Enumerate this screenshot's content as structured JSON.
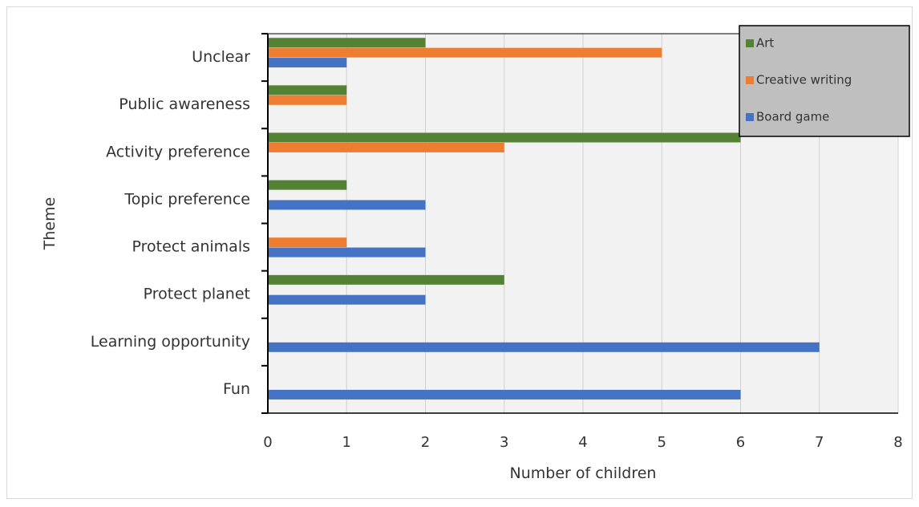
{
  "chart_data": {
    "type": "bar",
    "orientation": "horizontal",
    "xlabel": "Number of children",
    "ylabel": "Theme",
    "xlim": [
      0,
      8
    ],
    "x_ticks": [
      "0",
      "1",
      "2",
      "3",
      "4",
      "5",
      "6",
      "7",
      "8"
    ],
    "grid": "vertical",
    "legend_position": "top-right",
    "categories": [
      "Fun",
      "Learning opportunity",
      "Protect planet",
      "Protect animals",
      "Topic preference",
      "Activity preference",
      "Public awareness",
      "Unclear"
    ],
    "series": [
      {
        "name": "Board game",
        "color": "#4472c4",
        "values": [
          6,
          7,
          2,
          2,
          2,
          0,
          0,
          1
        ]
      },
      {
        "name": "Creative writing",
        "color": "#ed7d31",
        "values": [
          0,
          0,
          0,
          1,
          0,
          3,
          1,
          5
        ]
      },
      {
        "name": "Art",
        "color": "#548235",
        "values": [
          0,
          0,
          3,
          0,
          1,
          6,
          1,
          2
        ]
      }
    ],
    "legend_order": [
      "Art",
      "Creative writing",
      "Board game"
    ],
    "plot_background": "#f2f2f2",
    "legend_background": "#bfbfbf"
  }
}
